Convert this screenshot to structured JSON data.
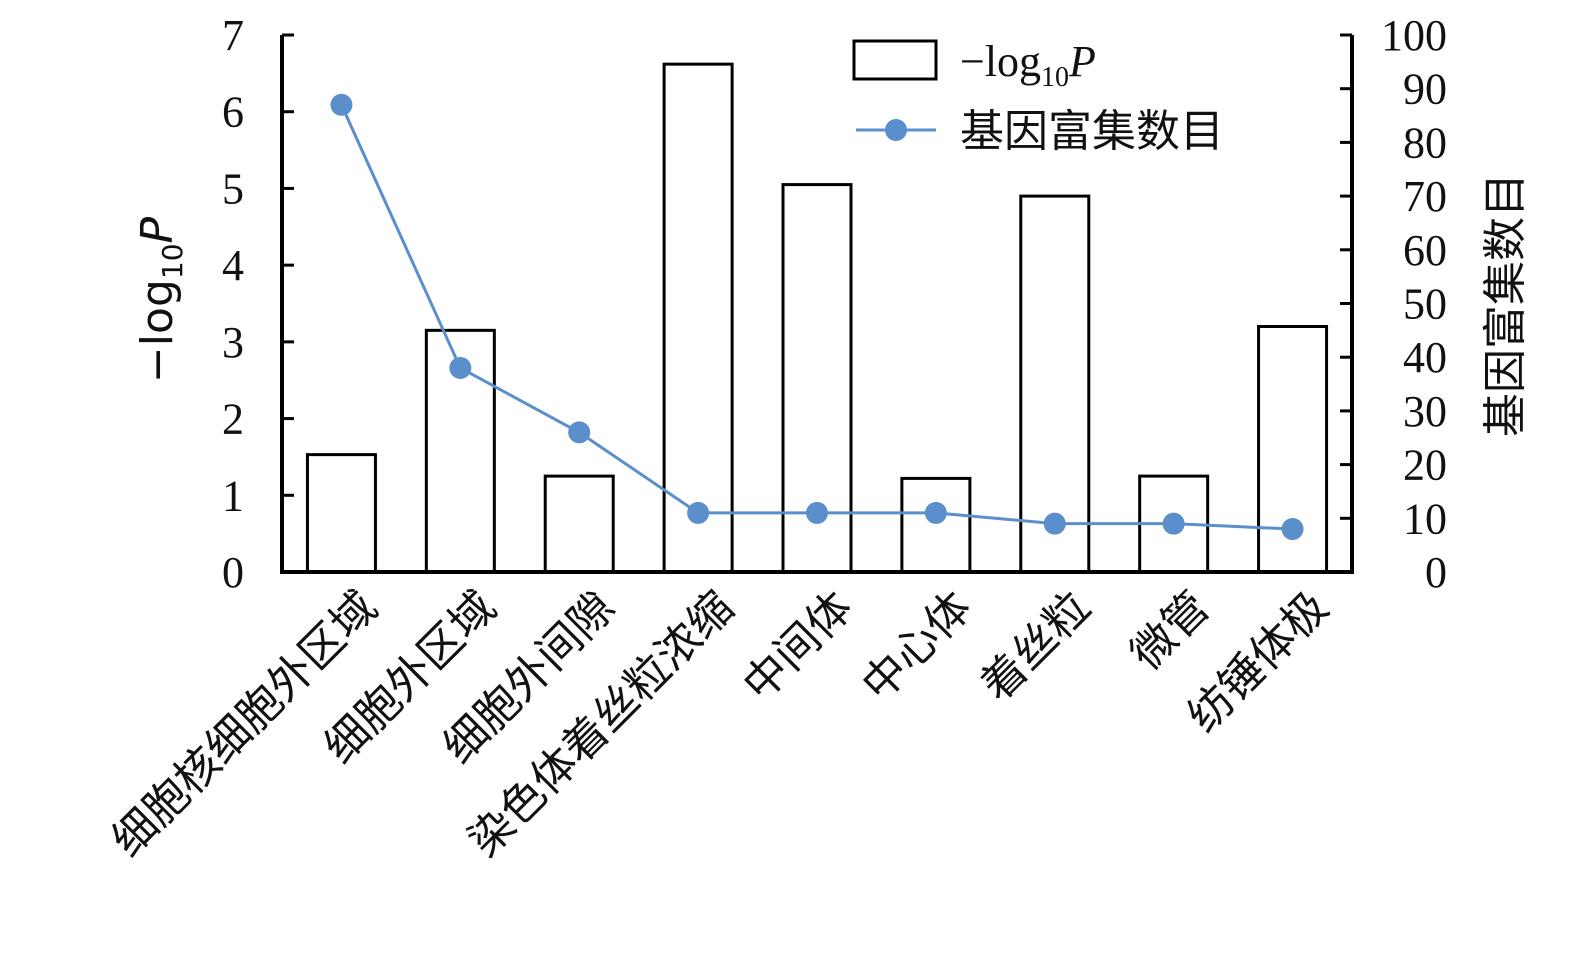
{
  "chart_data": {
    "type": "bar",
    "categories": [
      "细胞核细胞外区域",
      "细胞外区域",
      "细胞外间隙",
      "染色体着丝粒浓缩",
      "中间体",
      "中心体",
      "着丝粒",
      "微管",
      "纺锤体极"
    ],
    "series": [
      {
        "name": "−log10P",
        "type": "bar",
        "axis": "left",
        "values": [
          1.53,
          3.15,
          1.25,
          6.62,
          5.05,
          1.22,
          4.9,
          1.25,
          3.2
        ]
      },
      {
        "name": "基因富集数目",
        "type": "line",
        "axis": "right",
        "values": [
          87,
          38,
          26,
          11,
          11,
          11,
          9,
          9,
          8
        ]
      }
    ],
    "ylabel": "−log10P",
    "y2label": "基因富集数目",
    "ylim": [
      0,
      7
    ],
    "y2lim": [
      0,
      100
    ],
    "yticks": [
      "0",
      "1",
      "2",
      "3",
      "4",
      "5",
      "6",
      "7"
    ],
    "y2ticks": [
      "0",
      "10",
      "20",
      "30",
      "40",
      "50",
      "60",
      "70",
      "80",
      "90",
      "100"
    ],
    "legend": {
      "position": "top-right",
      "bar_prefix": "−log",
      "bar_sub": "10",
      "bar_suffix": "P",
      "line_label": "基因富集数目"
    },
    "axis_title_parts": {
      "prefix": "−log",
      "sub": "10",
      "suffix": "P"
    },
    "colors": {
      "line": "#5b8fcc",
      "bar_fill": "#ffffff",
      "bar_stroke": "#000000"
    },
    "grid": false
  }
}
